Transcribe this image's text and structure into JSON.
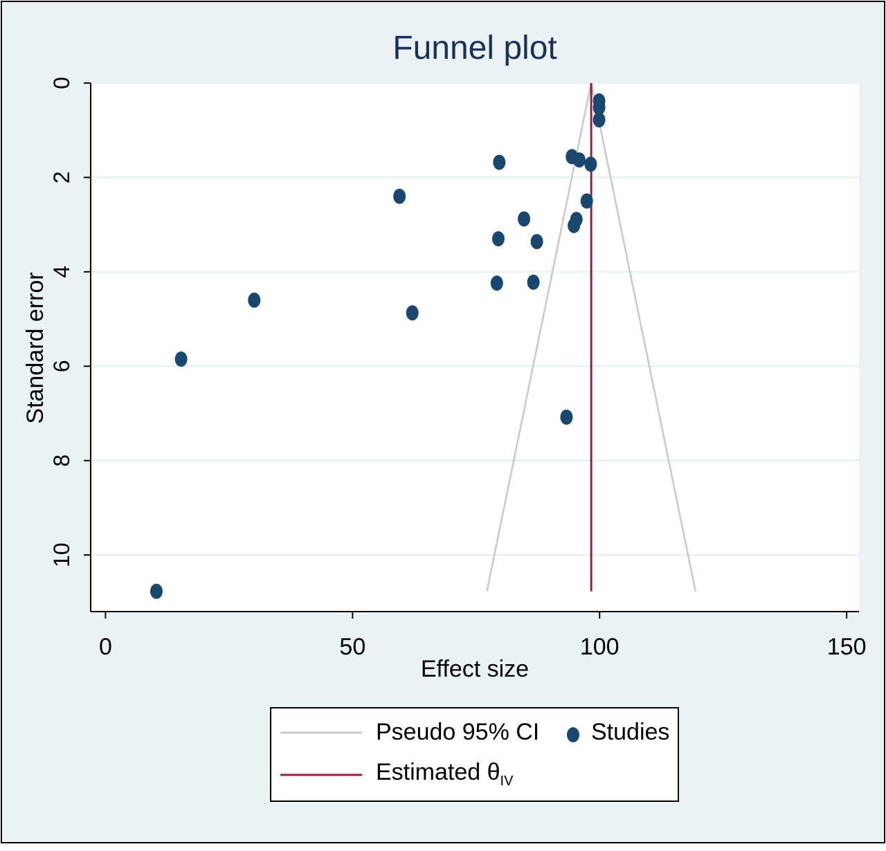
{
  "chart_data": {
    "type": "scatter",
    "title": "Funnel plot",
    "xlabel": "Effect size",
    "ylabel": "Standard error",
    "xlim": [
      -3,
      152.5
    ],
    "ylim": [
      0,
      11.2
    ],
    "y_reversed": true,
    "xticks": [
      0,
      50,
      100,
      150
    ],
    "yticks": [
      0,
      2,
      4,
      6,
      8,
      10
    ],
    "grid": true,
    "legend_position": "bottom",
    "colors": {
      "outer_background": "#eaf2f3",
      "plot_background": "#ffffff",
      "gridline": "#eaf2f3",
      "frame": "#000000",
      "title": "#1a2f5a",
      "points": "#1a476f",
      "ci_lines": "#c8c8c8",
      "estimate_line": "#a0193b"
    },
    "series": [
      {
        "name": "Studies",
        "kind": "scatter",
        "points": [
          {
            "x": 99.9,
            "se": 0.38
          },
          {
            "x": 99.9,
            "se": 0.52
          },
          {
            "x": 99.9,
            "se": 0.78
          },
          {
            "x": 79.7,
            "se": 1.68
          },
          {
            "x": 94.4,
            "se": 1.56
          },
          {
            "x": 95.9,
            "se": 1.63
          },
          {
            "x": 98.2,
            "se": 1.72
          },
          {
            "x": 59.5,
            "se": 2.4
          },
          {
            "x": 97.4,
            "se": 2.5
          },
          {
            "x": 84.7,
            "se": 2.88
          },
          {
            "x": 95.3,
            "se": 2.89
          },
          {
            "x": 94.8,
            "se": 3.02
          },
          {
            "x": 79.5,
            "se": 3.3
          },
          {
            "x": 87.3,
            "se": 3.36
          },
          {
            "x": 79.2,
            "se": 4.24
          },
          {
            "x": 86.6,
            "se": 4.22
          },
          {
            "x": 30.1,
            "se": 4.6
          },
          {
            "x": 62.1,
            "se": 4.87
          },
          {
            "x": 15.3,
            "se": 5.85
          },
          {
            "x": 93.3,
            "se": 7.08
          },
          {
            "x": 10.3,
            "se": 10.77
          }
        ]
      },
      {
        "name": "Pseudo 95% CI",
        "kind": "lines",
        "theta": 98.3,
        "se_max": 10.77,
        "z": 1.96
      },
      {
        "name": "Estimated θ",
        "name_subscript": "IV",
        "kind": "vline",
        "x": 98.3,
        "se_range": [
          0,
          10.77
        ]
      }
    ],
    "legend": {
      "ci_label": "Pseudo 95% CI",
      "studies_label": "Studies",
      "estimate_label": "Estimated θ",
      "estimate_subscript": "IV"
    }
  }
}
